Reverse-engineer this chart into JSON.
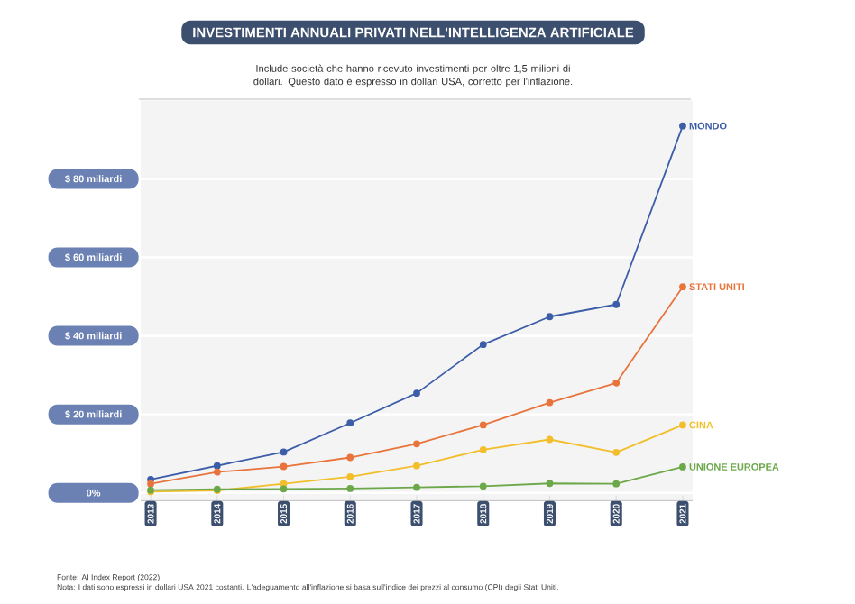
{
  "chart_data": {
    "type": "line",
    "title": "INVESTIMENTI ANNUALI PRIVATI NELL'INTELLIGENZA ARTIFICIALE",
    "subtitle": "Include società che hanno ricevuto investimenti per oltre 1,5 milioni di dollari. Questo dato è espresso in dollari USA, corretto per l'inflazione.",
    "categories": [
      "2013",
      "2014",
      "2015",
      "2016",
      "2017",
      "2018",
      "2019",
      "2020",
      "2021"
    ],
    "series": [
      {
        "name": "MONDO",
        "color": "#3c5da8",
        "values": [
          3.4,
          6.9,
          10.4,
          17.8,
          25.4,
          37.8,
          44.9,
          48,
          93.5
        ]
      },
      {
        "name": "STATI UNITI",
        "color": "#e8743b",
        "values": [
          2.3,
          5.3,
          6.7,
          9.0,
          12.5,
          17.3,
          23,
          28,
          52.5
        ]
      },
      {
        "name": "CINA",
        "color": "#f2be2b",
        "values": [
          0.3,
          0.6,
          2.3,
          4.1,
          6.9,
          11,
          13.6,
          10.3,
          17.3
        ]
      },
      {
        "name": "UNIONE EUROPEA",
        "color": "#6ca84a",
        "values": [
          0.7,
          0.9,
          1.0,
          1.1,
          1.4,
          1.7,
          2.4,
          2.3,
          6.6
        ]
      }
    ],
    "ylim": [
      -2,
      100
    ],
    "yticks": [
      {
        "value": 0,
        "label": "0%"
      },
      {
        "value": 20,
        "label": "$ 20 miliardi"
      },
      {
        "value": 40,
        "label": "$ 40 miliardi"
      },
      {
        "value": 60,
        "label": "$ 60 miliardi"
      },
      {
        "value": 80,
        "label": "$ 80 miliardi"
      }
    ],
    "grid": "y",
    "legend": false,
    "marker": "circle",
    "line_style": "solid",
    "annotations": [
      "Fonte: AI Index Report (2022)",
      "Nota: I dati sono espressi in dollari USA 2021 costanti. L'adeguamento all'inflazione si basa sull'indice dei prezzi al consumo (CPI) degli Stati Uniti."
    ]
  }
}
